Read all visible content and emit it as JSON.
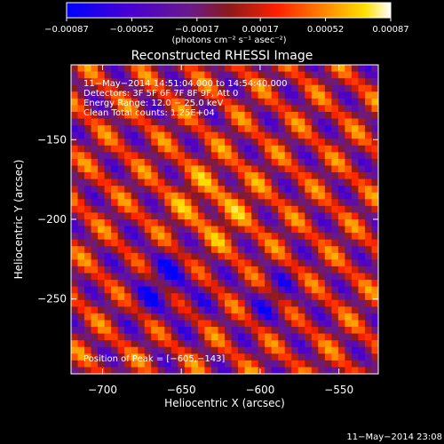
{
  "chart_data": {
    "type": "heatmap",
    "title": "Reconstructed RHESSI Image",
    "xlabel": "Heliocentric X (arcsec)",
    "ylabel": "Heliocentric Y (arcsec)",
    "xlim": [
      -720,
      -525
    ],
    "ylim": [
      -297,
      -103
    ],
    "x_ticks": [
      -700,
      -650,
      -600,
      -550
    ],
    "x_tick_labels": [
      "−700",
      "−650",
      "−600",
      "−550"
    ],
    "y_ticks": [
      -150,
      -200,
      -250
    ],
    "y_tick_labels": [
      "−150",
      "−200",
      "−250"
    ],
    "info_lines": [
      "11−May−2014 14:51:04.000 to 14:54:40.000",
      "Detectors: 3F 5F 6F 7F 8F 9F, Att 0",
      "Energy Range: 12.0 − 25.0 keV",
      "Clean     Total counts: 1.25E+04"
    ],
    "peak_text": "Position of Peak = [−605,−143]",
    "peak_position": [
      -605,
      -143
    ],
    "colorbar": {
      "min": -0.00087,
      "max": 0.00087,
      "tick_values": [
        -0.00087,
        -0.00052,
        -0.00017,
        0.00017,
        0.00052,
        0.00087
      ],
      "tick_labels": [
        "−0.00087",
        "−0.00052",
        "−0.00017",
        "0.00017",
        "0.00052",
        "0.00087"
      ],
      "units": "(photons cm⁻² s⁻¹ asec⁻²)",
      "colors": [
        "#0000ff",
        "#5000c8",
        "#6a1a8a",
        "#8a1a1a",
        "#ff2000",
        "#ff8000",
        "#ffe000",
        "#ffffff"
      ]
    },
    "grid": false,
    "legend": "none"
  },
  "timestamp": "11−May−2014 23:08"
}
